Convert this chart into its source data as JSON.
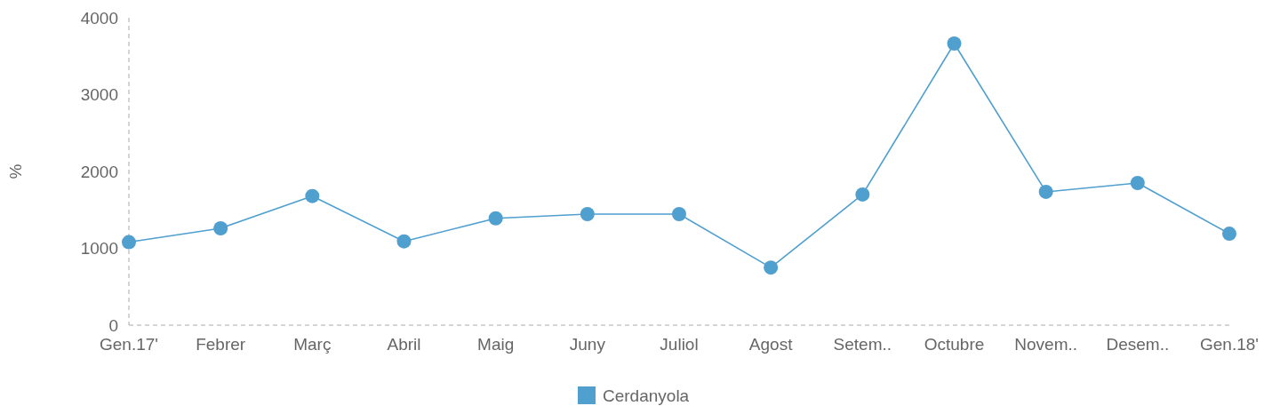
{
  "chart_data": {
    "type": "line",
    "ylabel": "%",
    "categories": [
      "Gen.17'",
      "Febrer",
      "Març",
      "Abril",
      "Maig",
      "Juny",
      "Juliol",
      "Agost",
      "Setem..",
      "Octubre",
      "Novem..",
      "Desem..",
      "Gen.18'"
    ],
    "series": [
      {
        "name": "Cerdanyola",
        "color": "#4f9fcf",
        "values": [
          1080,
          1260,
          1680,
          1090,
          1390,
          1445,
          1445,
          750,
          1700,
          3665,
          1735,
          1850,
          1190
        ]
      }
    ],
    "ylim": [
      0,
      4000
    ],
    "yticks": [
      0,
      1000,
      2000,
      3000,
      4000
    ],
    "grid": false,
    "legend": "bottom",
    "marker": "circle",
    "line_style": "solid"
  }
}
